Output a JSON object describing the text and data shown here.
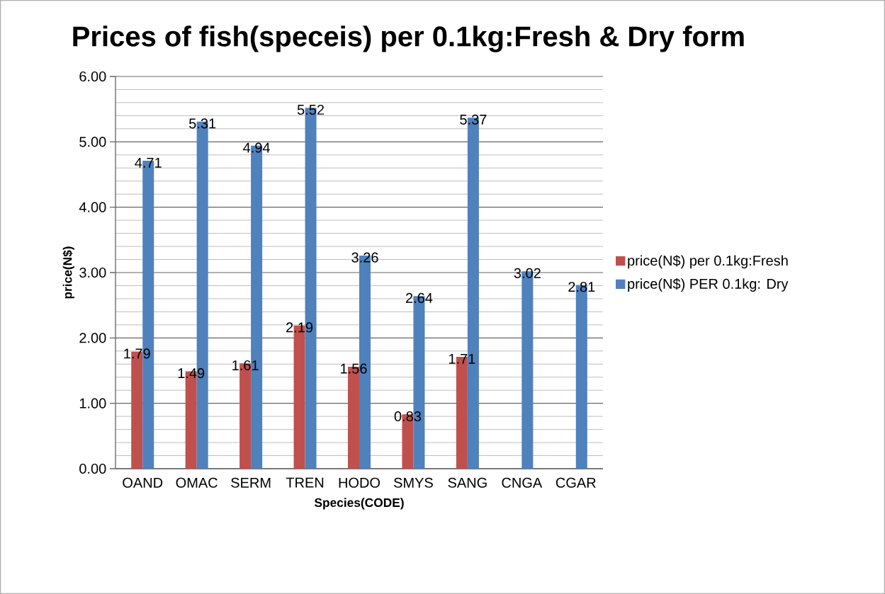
{
  "chart_data": {
    "type": "bar",
    "title": "Prices of fish(speceis) per 0.1kg:Fresh & Dry form",
    "xlabel": "Species(CODE)",
    "ylabel": "price(N$)",
    "categories": [
      "OAND",
      "OMAC",
      "SERM",
      "TREN",
      "HODO",
      "SMYS",
      "SANG",
      "CNGA",
      "CGAR"
    ],
    "series": [
      {
        "name": "price(N$) per 0.1kg:Fresh",
        "color": "#c0504d",
        "values": [
          1.79,
          1.49,
          1.61,
          2.19,
          1.56,
          0.83,
          1.71,
          null,
          null
        ]
      },
      {
        "name": "price(N$) PER 0.1kg: Dry",
        "color": "#4f81bd",
        "values": [
          4.71,
          5.31,
          4.94,
          5.52,
          3.26,
          2.64,
          5.37,
          3.02,
          2.81
        ]
      }
    ],
    "ylim": [
      0,
      6
    ],
    "yticks": [
      {
        "value": 0,
        "label": "0.00"
      },
      {
        "value": 1,
        "label": "1.00"
      },
      {
        "value": 2,
        "label": "2.00"
      },
      {
        "value": 3,
        "label": "3.00"
      },
      {
        "value": 4,
        "label": "4.00"
      },
      {
        "value": 5,
        "label": "5.00"
      },
      {
        "value": 6,
        "label": "6.00"
      }
    ],
    "grid": "y",
    "legend": "right",
    "data_labels": true
  }
}
